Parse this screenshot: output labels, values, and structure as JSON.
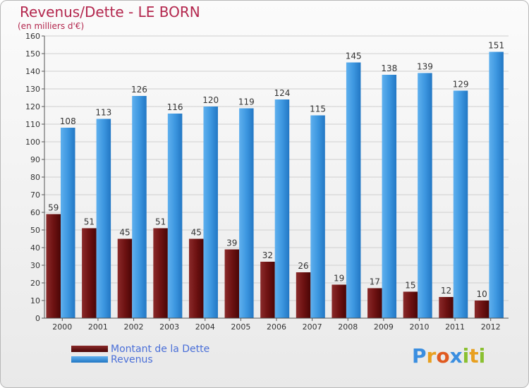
{
  "title": "Revenus/Dette - LE BORN",
  "subtitle": "(en milliers d'€)",
  "logo": {
    "text": "Proxiti",
    "letters": [
      "P",
      "r",
      "o",
      "x",
      "i",
      "t",
      "i"
    ],
    "colors": [
      "#3a8ee0",
      "#e8a020",
      "#e05a20",
      "#3a8ee0",
      "#8ac030",
      "#e8a020",
      "#8ac030"
    ]
  },
  "colors": {
    "dette": "#6b1010",
    "revenus": "#3d97e0",
    "title": "#b3264d",
    "legend_text": "#4a6fd8"
  },
  "chart_data": {
    "type": "bar",
    "title": "Revenus/Dette - LE BORN",
    "subtitle": "(en milliers d'€)",
    "xlabel": "",
    "ylabel": "",
    "ylim": [
      0,
      160
    ],
    "yticks": [
      0,
      10,
      20,
      30,
      40,
      50,
      60,
      70,
      80,
      90,
      100,
      110,
      120,
      130,
      140,
      150,
      160
    ],
    "grid": true,
    "legend_position": "bottom-left",
    "categories": [
      "2000",
      "2001",
      "2002",
      "2003",
      "2004",
      "2005",
      "2006",
      "2007",
      "2008",
      "2009",
      "2010",
      "2011",
      "2012"
    ],
    "series": [
      {
        "name": "Montant de la Dette",
        "values": [
          59,
          51,
          45,
          51,
          45,
          39,
          32,
          26,
          19,
          17,
          15,
          12,
          10
        ]
      },
      {
        "name": "Revenus",
        "values": [
          108,
          113,
          126,
          116,
          120,
          119,
          124,
          115,
          145,
          138,
          139,
          129,
          151
        ]
      }
    ]
  }
}
